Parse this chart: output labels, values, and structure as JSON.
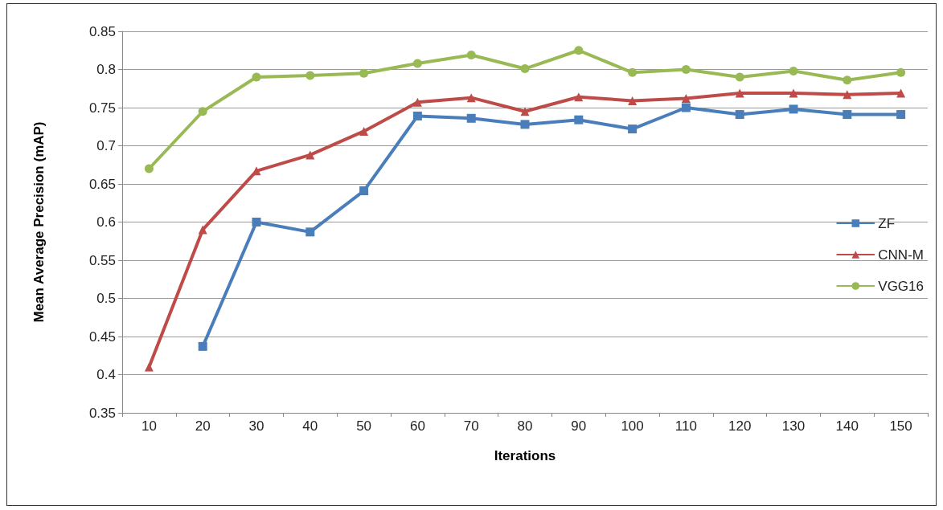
{
  "chart_data": {
    "type": "line",
    "xlabel": "Iterations",
    "ylabel": "Mean Average Precision (mAP)",
    "categories": [
      "10",
      "20",
      "30",
      "40",
      "50",
      "60",
      "70",
      "80",
      "90",
      "100",
      "110",
      "120",
      "130",
      "140",
      "150"
    ],
    "series": [
      {
        "name": "ZF",
        "color": "#4a7ebb",
        "marker": "square",
        "values": [
          null,
          0.437,
          0.6,
          0.587,
          0.641,
          0.739,
          0.736,
          0.728,
          0.734,
          0.722,
          0.75,
          0.741,
          0.748,
          0.741,
          0.741
        ]
      },
      {
        "name": "CNN-M",
        "color": "#be4b48",
        "marker": "triangle",
        "values": [
          0.41,
          0.59,
          0.667,
          0.688,
          0.719,
          0.757,
          0.763,
          0.745,
          0.764,
          0.759,
          0.762,
          0.769,
          0.769,
          0.767,
          0.769
        ]
      },
      {
        "name": "VGG16",
        "color": "#98b954",
        "marker": "circle",
        "values": [
          0.67,
          0.745,
          0.79,
          0.792,
          0.795,
          0.808,
          0.819,
          0.801,
          0.825,
          0.796,
          0.8,
          0.79,
          0.798,
          0.786,
          0.796
        ]
      }
    ],
    "ylim": [
      0.35,
      0.85
    ],
    "yticks": [
      0.35,
      0.4,
      0.45,
      0.5,
      0.55,
      0.6,
      0.65,
      0.7,
      0.75,
      0.8,
      0.85
    ],
    "grid": "y",
    "legend": "right",
    "line_style": "solid"
  }
}
